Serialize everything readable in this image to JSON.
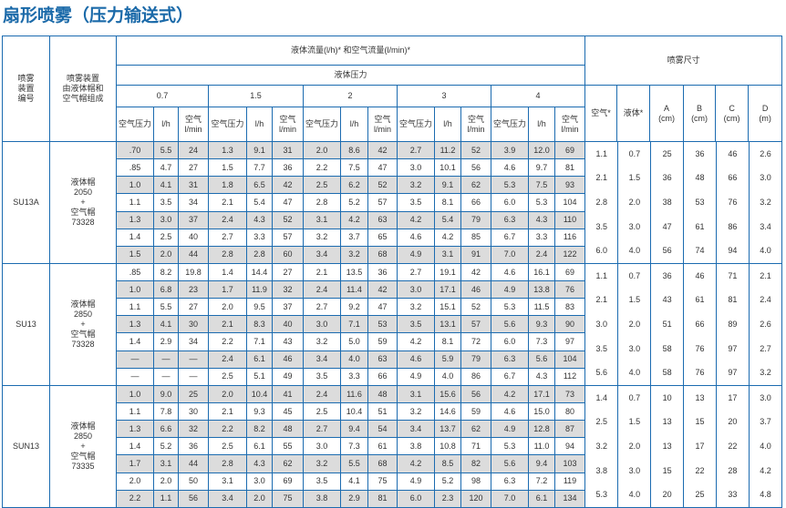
{
  "title": "扇形喷雾（压力输送式）",
  "header": {
    "col_id": [
      "喷雾",
      "装置",
      "编号"
    ],
    "col_comp": [
      "喷雾装置",
      "由液体帽和",
      "空气帽组成"
    ],
    "flow": "液体流量(l/h)* 和空气流量(l/min)*",
    "liquid_pressure": "液体压力",
    "pressures": [
      "0.7",
      "1.5",
      "2",
      "3",
      "4"
    ],
    "sub": {
      "air_pressure": "空气压力",
      "lh": "l/h",
      "air": "空气",
      "lmin": "l/min"
    },
    "spray_size": "喷雾尺寸",
    "size_cols": [
      [
        "空气*",
        ""
      ],
      [
        "液体*",
        ""
      ],
      [
        "A",
        "(cm)"
      ],
      [
        "B",
        "(cm)"
      ],
      [
        "C",
        "(cm)"
      ],
      [
        "D",
        "(m)"
      ]
    ]
  },
  "colors": {
    "border": "#1b6bb0",
    "title": "#1b6aa9",
    "shade": "#dcdcdc"
  },
  "groups": [
    {
      "id": "SU13A",
      "comp": [
        "液体帽",
        "2050",
        "+",
        "空气帽",
        "73328"
      ],
      "first_shaded": true,
      "rows": [
        [
          ".70",
          "5.5",
          "24",
          "1.3",
          "9.1",
          "31",
          "2.0",
          "8.6",
          "42",
          "2.7",
          "11.2",
          "52",
          "3.9",
          "12.0",
          "69"
        ],
        [
          ".85",
          "4.7",
          "27",
          "1.5",
          "7.7",
          "36",
          "2.2",
          "7.5",
          "47",
          "3.0",
          "10.1",
          "56",
          "4.6",
          "9.7",
          "81"
        ],
        [
          "1.0",
          "4.1",
          "31",
          "1.8",
          "6.5",
          "42",
          "2.5",
          "6.2",
          "52",
          "3.2",
          "9.1",
          "62",
          "5.3",
          "7.5",
          "93"
        ],
        [
          "1.1",
          "3.5",
          "34",
          "2.1",
          "5.4",
          "47",
          "2.8",
          "5.2",
          "57",
          "3.5",
          "8.1",
          "66",
          "6.0",
          "5.3",
          "104"
        ],
        [
          "1.3",
          "3.0",
          "37",
          "2.4",
          "4.3",
          "52",
          "3.1",
          "4.2",
          "63",
          "4.2",
          "5.4",
          "79",
          "6.3",
          "4.3",
          "110"
        ],
        [
          "1.4",
          "2.5",
          "40",
          "2.7",
          "3.3",
          "57",
          "3.2",
          "3.7",
          "65",
          "4.6",
          "4.2",
          "85",
          "6.7",
          "3.3",
          "116"
        ],
        [
          "1.5",
          "2.0",
          "44",
          "2.8",
          "2.8",
          "60",
          "3.4",
          "3.2",
          "68",
          "4.9",
          "3.1",
          "91",
          "7.0",
          "2.4",
          "122"
        ]
      ],
      "sizes": [
        [
          "1.1",
          "0.7",
          "25",
          "36",
          "46",
          "2.6"
        ],
        [
          "2.1",
          "1.5",
          "36",
          "48",
          "66",
          "3.0"
        ],
        [
          "2.8",
          "2.0",
          "38",
          "53",
          "76",
          "3.2"
        ],
        [
          "3.5",
          "3.0",
          "47",
          "61",
          "86",
          "3.4"
        ],
        [
          "6.0",
          "4.0",
          "56",
          "74",
          "94",
          "4.0"
        ]
      ]
    },
    {
      "id": "SU13",
      "comp": [
        "液体帽",
        "2850",
        "+",
        "空气帽",
        "73328"
      ],
      "first_shaded": false,
      "rows": [
        [
          ".85",
          "8.2",
          "19.8",
          "1.4",
          "14.4",
          "27",
          "2.1",
          "13.5",
          "36",
          "2.7",
          "19.1",
          "42",
          "4.6",
          "16.1",
          "69"
        ],
        [
          "1.0",
          "6.8",
          "23",
          "1.7",
          "11.9",
          "32",
          "2.4",
          "11.4",
          "42",
          "3.0",
          "17.1",
          "46",
          "4.9",
          "13.8",
          "76"
        ],
        [
          "1.1",
          "5.5",
          "27",
          "2.0",
          "9.5",
          "37",
          "2.7",
          "9.2",
          "47",
          "3.2",
          "15.1",
          "52",
          "5.3",
          "11.5",
          "83"
        ],
        [
          "1.3",
          "4.1",
          "30",
          "2.1",
          "8.3",
          "40",
          "3.0",
          "7.1",
          "53",
          "3.5",
          "13.1",
          "57",
          "5.6",
          "9.3",
          "90"
        ],
        [
          "1.4",
          "2.9",
          "34",
          "2.2",
          "7.1",
          "43",
          "3.2",
          "5.0",
          "59",
          "4.2",
          "8.1",
          "72",
          "6.0",
          "7.3",
          "97"
        ],
        [
          "—",
          "—",
          "—",
          "2.4",
          "6.1",
          "46",
          "3.4",
          "4.0",
          "63",
          "4.6",
          "5.9",
          "79",
          "6.3",
          "5.6",
          "104"
        ],
        [
          "—",
          "—",
          "—",
          "2.5",
          "5.1",
          "49",
          "3.5",
          "3.3",
          "66",
          "4.9",
          "4.0",
          "86",
          "6.7",
          "4.3",
          "112"
        ]
      ],
      "sizes": [
        [
          "1.1",
          "0.7",
          "36",
          "46",
          "71",
          "2.1"
        ],
        [
          "2.1",
          "1.5",
          "43",
          "61",
          "81",
          "2.4"
        ],
        [
          "3.0",
          "2.0",
          "51",
          "66",
          "89",
          "2.6"
        ],
        [
          "3.5",
          "3.0",
          "58",
          "76",
          "97",
          "2.7"
        ],
        [
          "5.6",
          "4.0",
          "58",
          "76",
          "97",
          "3.2"
        ]
      ]
    },
    {
      "id": "SUN13",
      "comp": [
        "液体帽",
        "2850",
        "+",
        "空气帽",
        "73335"
      ],
      "first_shaded": true,
      "rows": [
        [
          "1.0",
          "9.0",
          "25",
          "2.0",
          "10.4",
          "41",
          "2.4",
          "11.6",
          "48",
          "3.1",
          "15.6",
          "56",
          "4.2",
          "17.1",
          "73"
        ],
        [
          "1.1",
          "7.8",
          "30",
          "2.1",
          "9.3",
          "45",
          "2.5",
          "10.4",
          "51",
          "3.2",
          "14.6",
          "59",
          "4.6",
          "15.0",
          "80"
        ],
        [
          "1.3",
          "6.6",
          "32",
          "2.2",
          "8.2",
          "48",
          "2.7",
          "9.4",
          "54",
          "3.4",
          "13.7",
          "62",
          "4.9",
          "12.8",
          "87"
        ],
        [
          "1.4",
          "5.2",
          "36",
          "2.5",
          "6.1",
          "55",
          "3.0",
          "7.3",
          "61",
          "3.8",
          "10.8",
          "71",
          "5.3",
          "11.0",
          "94"
        ],
        [
          "1.7",
          "3.1",
          "44",
          "2.8",
          "4.3",
          "62",
          "3.2",
          "5.5",
          "68",
          "4.2",
          "8.5",
          "82",
          "5.6",
          "9.4",
          "103"
        ],
        [
          "2.0",
          "2.0",
          "50",
          "3.1",
          "3.0",
          "69",
          "3.5",
          "4.1",
          "75",
          "4.9",
          "5.2",
          "98",
          "6.3",
          "7.2",
          "119"
        ],
        [
          "2.2",
          "1.1",
          "56",
          "3.4",
          "2.0",
          "75",
          "3.8",
          "2.9",
          "81",
          "6.0",
          "2.3",
          "120",
          "7.0",
          "6.1",
          "134"
        ]
      ],
      "sizes": [
        [
          "1.4",
          "0.7",
          "10",
          "13",
          "17",
          "3.0"
        ],
        [
          "2.5",
          "1.5",
          "13",
          "15",
          "20",
          "3.7"
        ],
        [
          "3.2",
          "2.0",
          "13",
          "17",
          "22",
          "4.0"
        ],
        [
          "3.8",
          "3.0",
          "15",
          "22",
          "28",
          "4.2"
        ],
        [
          "5.3",
          "4.0",
          "20",
          "25",
          "33",
          "4.8"
        ]
      ]
    }
  ]
}
